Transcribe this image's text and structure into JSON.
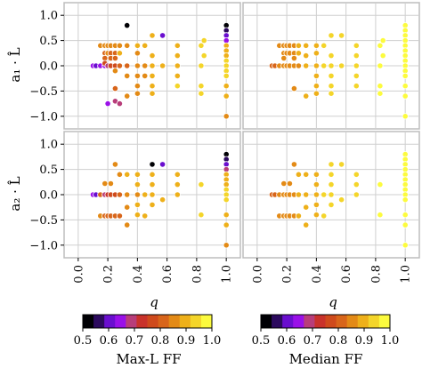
{
  "chart_data": {
    "type": "scatter",
    "title": "",
    "xlabel": "q",
    "ylabels": [
      "a₁ · L̂",
      "a₂ · L̂"
    ],
    "xlim": [
      0.0,
      1.0
    ],
    "ylim": [
      -1.0,
      1.0
    ],
    "xticks": [
      "0.0",
      "0.2",
      "0.4",
      "0.6",
      "0.8",
      "1.0"
    ],
    "yticks": [
      "1.0",
      "0.5",
      "0.0",
      "−0.5",
      "−1.0"
    ],
    "grid": true,
    "colorbars": [
      {
        "label": "Max-L FF",
        "ticks": [
          "0.5",
          "0.6",
          "0.7",
          "0.8",
          "0.9",
          "1.0"
        ],
        "range": [
          0.5,
          1.0
        ]
      },
      {
        "label": "Median FF",
        "ticks": [
          "0.5",
          "0.6",
          "0.7",
          "0.8",
          "0.9",
          "1.0"
        ],
        "range": [
          0.5,
          1.0
        ]
      }
    ],
    "colors": [
      "#000004",
      "#2c0a5e",
      "#6a0ecf",
      "#9a10e8",
      "#b83d7a",
      "#c9322b",
      "#cf4a1c",
      "#d8651a",
      "#e38a16",
      "#eeb01a",
      "#f4d52a",
      "#fcfb3e"
    ],
    "panels": [
      {
        "name": "Max-L FF",
        "row": "a1",
        "x": [
          0.1,
          0.12,
          0.15,
          0.15,
          0.18,
          0.18,
          0.18,
          0.18,
          0.18,
          0.2,
          0.2,
          0.2,
          0.22,
          0.22,
          0.22,
          0.22,
          0.25,
          0.25,
          0.25,
          0.25,
          0.25,
          0.25,
          0.28,
          0.28,
          0.28,
          0.33,
          0.33,
          0.33,
          0.33,
          0.33,
          0.4,
          0.4,
          0.4,
          0.4,
          0.4,
          0.4,
          0.45,
          0.45,
          0.45,
          0.5,
          0.5,
          0.5,
          0.5,
          0.5,
          0.5,
          0.57,
          0.57,
          0.67,
          0.67,
          0.67,
          0.67,
          0.67,
          0.83,
          0.83,
          0.83,
          0.83,
          0.85,
          0.85,
          1.0,
          1.0,
          1.0,
          1.0,
          1.0,
          1.0,
          1.0,
          1.0,
          1.0,
          1.0,
          1.0,
          1.0,
          1.0,
          1.0,
          0.2,
          0.25,
          0.28
        ],
        "y": [
          0.0,
          0.0,
          0.4,
          0.0,
          0.4,
          0.25,
          0.0,
          0.15,
          0.05,
          0.4,
          0.25,
          0.0,
          0.4,
          0.25,
          0.0,
          0.15,
          0.4,
          0.25,
          0.15,
          0.0,
          -0.1,
          -0.45,
          0.4,
          0.25,
          0.0,
          0.8,
          0.4,
          0.0,
          -0.2,
          -0.6,
          0.4,
          0.25,
          0.0,
          -0.2,
          -0.4,
          -0.55,
          0.4,
          0.0,
          -0.2,
          0.6,
          0.2,
          0.0,
          -0.2,
          -0.4,
          -0.55,
          0.6,
          0.0,
          0.4,
          0.2,
          0.0,
          -0.2,
          -0.4,
          0.4,
          0.0,
          -0.4,
          -0.55,
          0.5,
          0.2,
          0.8,
          0.7,
          0.6,
          0.5,
          0.4,
          0.3,
          0.2,
          0.1,
          0.0,
          -0.1,
          -0.2,
          -0.4,
          -0.6,
          -1.0,
          -0.75,
          -0.7,
          -0.75
        ],
        "ff": [
          0.62,
          0.6,
          0.85,
          0.65,
          0.85,
          0.82,
          0.65,
          0.8,
          0.75,
          0.85,
          0.85,
          0.7,
          0.85,
          0.8,
          0.75,
          0.82,
          0.85,
          0.82,
          0.8,
          0.78,
          0.85,
          0.82,
          0.88,
          0.9,
          0.8,
          0.5,
          0.88,
          0.8,
          0.85,
          0.85,
          0.9,
          0.88,
          0.85,
          0.88,
          0.85,
          0.88,
          0.9,
          0.88,
          0.88,
          0.9,
          0.9,
          0.9,
          0.9,
          0.92,
          0.92,
          0.6,
          0.92,
          0.9,
          0.92,
          0.93,
          0.93,
          0.94,
          0.95,
          0.96,
          0.95,
          0.95,
          0.97,
          0.97,
          0.5,
          0.55,
          0.6,
          0.65,
          0.9,
          0.92,
          0.93,
          0.95,
          0.95,
          0.95,
          0.95,
          0.93,
          0.9,
          0.88,
          0.65,
          0.66,
          0.68
        ]
      },
      {
        "name": "Median FF",
        "row": "a1",
        "x": [
          0.1,
          0.12,
          0.15,
          0.15,
          0.18,
          0.18,
          0.18,
          0.18,
          0.2,
          0.2,
          0.2,
          0.22,
          0.22,
          0.22,
          0.25,
          0.25,
          0.25,
          0.25,
          0.25,
          0.28,
          0.28,
          0.28,
          0.33,
          0.33,
          0.33,
          0.33,
          0.4,
          0.4,
          0.4,
          0.4,
          0.4,
          0.4,
          0.45,
          0.45,
          0.5,
          0.5,
          0.5,
          0.5,
          0.5,
          0.5,
          0.57,
          0.57,
          0.67,
          0.67,
          0.67,
          0.67,
          0.67,
          0.83,
          0.83,
          0.83,
          0.83,
          0.85,
          0.85,
          1.0,
          1.0,
          1.0,
          1.0,
          1.0,
          1.0,
          1.0,
          1.0,
          1.0,
          1.0,
          1.0,
          1.0,
          1.0,
          1.0
        ],
        "y": [
          0.0,
          0.0,
          0.4,
          0.0,
          0.4,
          0.25,
          0.0,
          0.15,
          0.4,
          0.25,
          0.0,
          0.4,
          0.25,
          0.0,
          0.4,
          0.25,
          0.15,
          0.0,
          -0.45,
          0.4,
          0.25,
          0.0,
          0.4,
          0.2,
          0.0,
          -0.6,
          0.4,
          0.25,
          0.0,
          -0.2,
          -0.4,
          -0.55,
          0.4,
          0.0,
          0.6,
          0.2,
          0.0,
          -0.2,
          -0.4,
          -0.55,
          0.6,
          0.0,
          0.4,
          0.2,
          0.0,
          -0.2,
          -0.4,
          0.4,
          0.0,
          -0.4,
          -0.55,
          0.5,
          0.2,
          0.8,
          0.7,
          0.6,
          0.5,
          0.4,
          0.3,
          0.2,
          0.1,
          0.0,
          -0.1,
          -0.2,
          -0.4,
          -0.6,
          -1.0
        ],
        "ff": [
          0.83,
          0.82,
          0.85,
          0.85,
          0.87,
          0.85,
          0.85,
          0.85,
          0.87,
          0.87,
          0.86,
          0.87,
          0.86,
          0.86,
          0.88,
          0.88,
          0.86,
          0.86,
          0.88,
          0.9,
          0.9,
          0.88,
          0.9,
          0.9,
          0.9,
          0.9,
          0.93,
          0.92,
          0.92,
          0.93,
          0.93,
          0.93,
          0.94,
          0.94,
          0.95,
          0.95,
          0.95,
          0.95,
          0.95,
          0.95,
          0.96,
          0.96,
          0.97,
          0.97,
          0.97,
          0.97,
          0.97,
          0.98,
          0.98,
          0.98,
          0.98,
          0.98,
          0.98,
          0.98,
          0.98,
          0.98,
          0.98,
          0.98,
          0.98,
          0.98,
          0.98,
          0.98,
          0.98,
          0.98,
          0.98,
          0.98,
          0.98
        ]
      },
      {
        "name": "Max-L FF",
        "row": "a2",
        "x": [
          0.1,
          0.12,
          0.15,
          0.15,
          0.18,
          0.18,
          0.18,
          0.2,
          0.2,
          0.22,
          0.22,
          0.22,
          0.25,
          0.25,
          0.25,
          0.28,
          0.28,
          0.28,
          0.33,
          0.33,
          0.33,
          0.33,
          0.4,
          0.4,
          0.4,
          0.4,
          0.4,
          0.45,
          0.45,
          0.5,
          0.5,
          0.5,
          0.5,
          0.5,
          0.57,
          0.57,
          0.67,
          0.67,
          0.67,
          0.83,
          0.83,
          0.83,
          1.0,
          1.0,
          1.0,
          1.0,
          1.0,
          1.0,
          1.0,
          1.0,
          1.0,
          1.0,
          1.0,
          1.0,
          1.0
        ],
        "y": [
          0.0,
          0.0,
          0.0,
          -0.42,
          0.0,
          -0.42,
          0.22,
          0.0,
          -0.42,
          0.0,
          -0.42,
          0.22,
          0.0,
          -0.42,
          0.6,
          0.0,
          0.4,
          -0.42,
          0.4,
          0.0,
          -0.25,
          -0.6,
          0.4,
          0.2,
          0.0,
          -0.2,
          -0.4,
          0.0,
          -0.42,
          0.6,
          0.4,
          0.2,
          0.0,
          -0.2,
          0.6,
          -0.1,
          0.4,
          0.2,
          0.0,
          0.2,
          -0.4,
          -0.4,
          0.8,
          0.7,
          0.6,
          0.5,
          0.4,
          0.3,
          0.2,
          0.1,
          0.0,
          -0.1,
          -0.4,
          -0.6,
          -1.0
        ],
        "ff": [
          0.62,
          0.6,
          0.8,
          0.85,
          0.7,
          0.82,
          0.85,
          0.72,
          0.82,
          0.75,
          0.82,
          0.85,
          0.78,
          0.82,
          0.88,
          0.82,
          0.88,
          0.82,
          0.9,
          0.85,
          0.88,
          0.85,
          0.9,
          0.9,
          0.88,
          0.9,
          0.9,
          0.9,
          0.9,
          0.5,
          0.92,
          0.92,
          0.92,
          0.92,
          0.6,
          0.92,
          0.93,
          0.93,
          0.93,
          0.95,
          0.95,
          0.95,
          0.5,
          0.55,
          0.6,
          0.7,
          0.9,
          0.92,
          0.93,
          0.95,
          0.95,
          0.95,
          0.93,
          0.9,
          0.88
        ]
      },
      {
        "name": "Median FF",
        "row": "a2",
        "x": [
          0.1,
          0.12,
          0.15,
          0.15,
          0.18,
          0.18,
          0.18,
          0.2,
          0.2,
          0.22,
          0.22,
          0.22,
          0.25,
          0.25,
          0.25,
          0.28,
          0.28,
          0.28,
          0.33,
          0.33,
          0.33,
          0.33,
          0.4,
          0.4,
          0.4,
          0.4,
          0.4,
          0.45,
          0.45,
          0.5,
          0.5,
          0.5,
          0.5,
          0.5,
          0.57,
          0.57,
          0.67,
          0.67,
          0.67,
          0.83,
          0.83,
          0.83,
          1.0,
          1.0,
          1.0,
          1.0,
          1.0,
          1.0,
          1.0,
          1.0,
          1.0,
          1.0,
          1.0,
          1.0,
          1.0
        ],
        "y": [
          0.0,
          0.0,
          0.0,
          -0.42,
          0.0,
          -0.42,
          0.22,
          0.0,
          -0.42,
          0.0,
          -0.42,
          0.22,
          0.0,
          -0.42,
          0.6,
          0.0,
          0.4,
          -0.42,
          0.4,
          0.0,
          -0.25,
          -0.6,
          0.4,
          0.2,
          0.0,
          -0.2,
          -0.4,
          0.0,
          -0.42,
          0.6,
          0.4,
          0.2,
          0.0,
          -0.2,
          0.6,
          -0.1,
          0.4,
          0.2,
          0.0,
          0.2,
          -0.4,
          -0.4,
          0.8,
          0.7,
          0.6,
          0.5,
          0.4,
          0.3,
          0.2,
          0.1,
          0.0,
          -0.1,
          -0.4,
          -0.6,
          -1.0
        ],
        "ff": [
          0.83,
          0.82,
          0.85,
          0.86,
          0.86,
          0.87,
          0.87,
          0.86,
          0.87,
          0.87,
          0.87,
          0.87,
          0.88,
          0.88,
          0.88,
          0.9,
          0.9,
          0.9,
          0.9,
          0.9,
          0.9,
          0.9,
          0.93,
          0.93,
          0.93,
          0.93,
          0.93,
          0.94,
          0.94,
          0.95,
          0.95,
          0.95,
          0.95,
          0.95,
          0.96,
          0.96,
          0.97,
          0.97,
          0.97,
          0.98,
          0.98,
          0.98,
          0.98,
          0.98,
          0.98,
          0.98,
          0.98,
          0.98,
          0.98,
          0.98,
          0.98,
          0.98,
          0.98,
          0.98,
          0.98
        ]
      }
    ]
  }
}
